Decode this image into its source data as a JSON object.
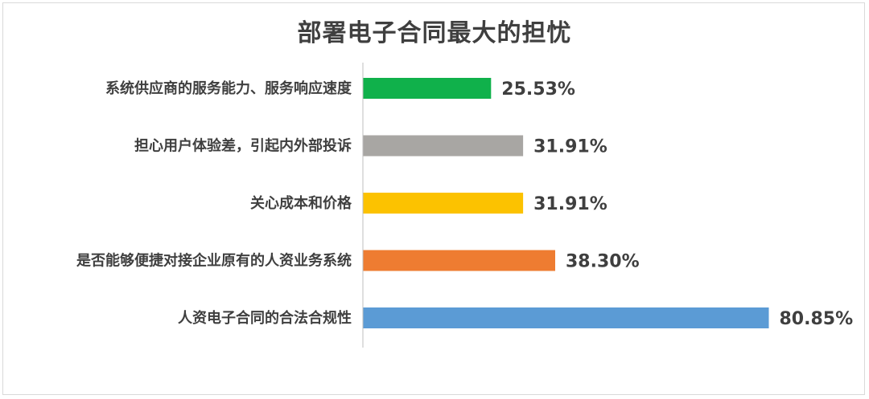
{
  "chart_data": {
    "type": "bar",
    "orientation": "horizontal",
    "title": "部署电子合同最大的担忧",
    "xlabel": "",
    "ylabel": "",
    "xlim": [
      0,
      100
    ],
    "grid": false,
    "legend": "none",
    "categories": [
      "系统供应商的服务能力、服务响应速度",
      "担心用户体验差，引起内外部投诉",
      "关心成本和价格",
      "是否能够便捷对接企业原有的人资业务系统",
      "人资电子合同的合法合规性"
    ],
    "values": [
      25.53,
      31.91,
      31.91,
      38.3,
      80.85
    ],
    "value_labels": [
      "25.53%",
      "31.91%",
      "31.91%",
      "38.30%",
      "80.85%"
    ],
    "colors": [
      "#10b14b",
      "#a8a6a3",
      "#fcc200",
      "#ee7c31",
      "#5b9bd5"
    ]
  }
}
